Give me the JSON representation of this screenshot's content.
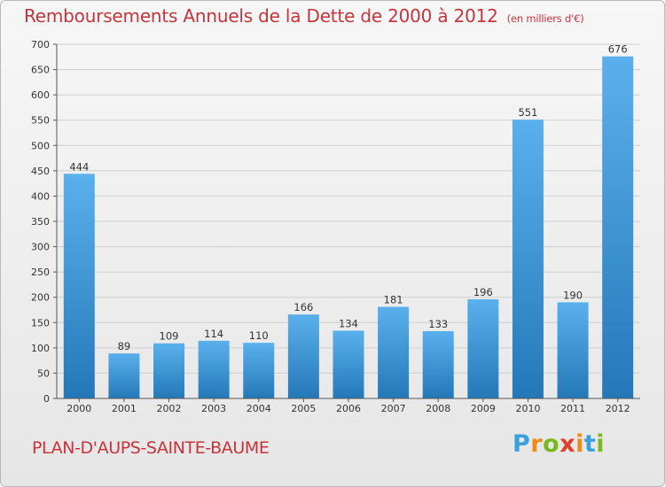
{
  "title": "Remboursements Annuels de la Dette de 2000 à 2012",
  "unit": "(en milliers d'€)",
  "place": "PLAN-D'AUPS-SAINTE-BAUME",
  "logo": {
    "letters": [
      "P",
      "r",
      "o",
      "x",
      "i",
      "t",
      "i"
    ],
    "colors": [
      "#3aa0db",
      "#f08a1a",
      "#7ab820",
      "#e0402b",
      "#f08a1a",
      "#3aa0db",
      "#7ab820"
    ]
  },
  "colors": {
    "bar_light": "#5ab0ec",
    "bar_dark": "#2478b8",
    "title": "#c8343b"
  },
  "chart_data": {
    "type": "bar",
    "title": "Remboursements Annuels de la Dette de 2000 à 2012",
    "categories": [
      "2000",
      "2001",
      "2002",
      "2003",
      "2004",
      "2005",
      "2006",
      "2007",
      "2008",
      "2009",
      "2010",
      "2011",
      "2012"
    ],
    "values": [
      444,
      89,
      109,
      114,
      110,
      166,
      134,
      181,
      133,
      196,
      551,
      190,
      676
    ],
    "ylim": [
      0,
      700
    ],
    "yticks": [
      0,
      50,
      100,
      150,
      200,
      250,
      300,
      350,
      400,
      450,
      500,
      550,
      600,
      650,
      700
    ],
    "grid": true,
    "legend": "none",
    "data_labels": true
  }
}
